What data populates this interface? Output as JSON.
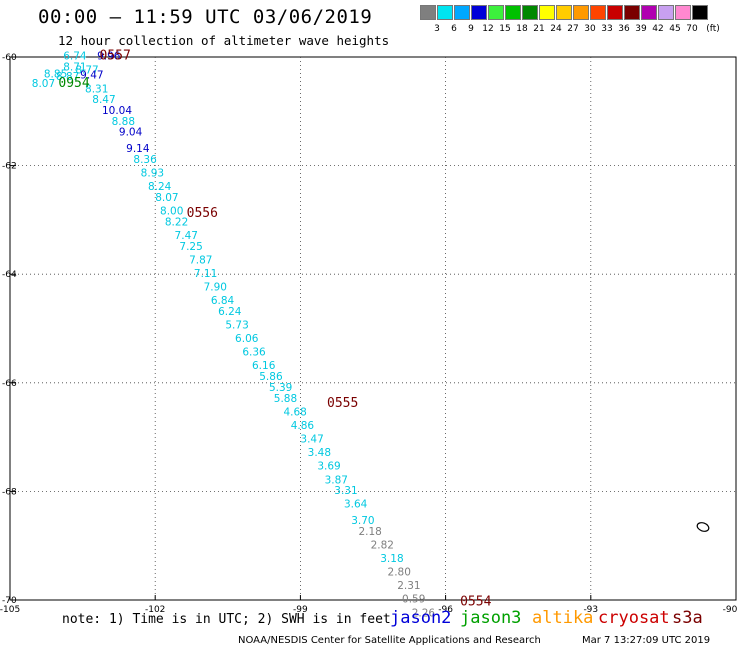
{
  "title": "00:00 – 11:59 UTC 03/06/2019",
  "subtitle": "12 hour collection of altimeter wave heights",
  "legend": {
    "colors": [
      "#7f7f7f",
      "#00e5f0",
      "#00a8ff",
      "#0000d8",
      "#3cf03c",
      "#00c000",
      "#008800",
      "#ffff00",
      "#ffcc00",
      "#ff9900",
      "#ff4400",
      "#c80000",
      "#7a0000",
      "#b000b0",
      "#c8a0f0",
      "#ff88d0",
      "#000000"
    ],
    "labels": [
      "3",
      "6",
      "9",
      "12",
      "15",
      "18",
      "21",
      "24",
      "27",
      "30",
      "33",
      "36",
      "39",
      "42",
      "45",
      "70"
    ],
    "unit": "(ft)"
  },
  "note": "note: 1) Time is in UTC; 2) SWH is in feet",
  "satellites": [
    {
      "name": "jason2",
      "color": "#0000d8"
    },
    {
      "name": "jason3",
      "color": "#00a000"
    },
    {
      "name": "altika",
      "color": "#ff9900"
    },
    {
      "name": "cryosat",
      "color": "#cc0000"
    },
    {
      "name": "s3a",
      "color": "#7a0000"
    }
  ],
  "credit": "NOAA/NESDIS Center for Satellite Applications and Research",
  "credit_time": "Mar  7 13:27:09 UTC 2019",
  "chart_data": {
    "type": "scatter",
    "title": "00:00 – 11:59 UTC 03/06/2019",
    "subtitle": "12 hour collection of altimeter wave heights",
    "xlim": [
      -105,
      -90
    ],
    "ylim": [
      -70,
      -60
    ],
    "x_ticks": [
      -105,
      -102,
      -99,
      -96,
      -93,
      -90
    ],
    "y_ticks": [
      -60,
      -62,
      -64,
      -66,
      -68,
      -70
    ],
    "grid": "dotted",
    "points": [
      {
        "lon": -103.9,
        "lat": -60.05,
        "v": "6.74"
      },
      {
        "lon": -103.2,
        "lat": -60.05,
        "v": "9.96"
      },
      {
        "lon": -103.9,
        "lat": -60.25,
        "v": "8.71"
      },
      {
        "lon": -103.65,
        "lat": -60.3,
        "v": "8.77"
      },
      {
        "lon": -103.55,
        "lat": -60.4,
        "v": "9.47"
      },
      {
        "lon": -104.3,
        "lat": -60.38,
        "v": "8.85"
      },
      {
        "lon": -104.05,
        "lat": -60.42,
        "v": "8.87"
      },
      {
        "lon": -104.55,
        "lat": -60.55,
        "v": "8.07"
      },
      {
        "lon": -103.45,
        "lat": -60.65,
        "v": "8.31"
      },
      {
        "lon": -103.3,
        "lat": -60.85,
        "v": "8.47"
      },
      {
        "lon": -103.1,
        "lat": -61.05,
        "v": "10.04"
      },
      {
        "lon": -102.9,
        "lat": -61.25,
        "v": "8.88"
      },
      {
        "lon": -102.75,
        "lat": -61.45,
        "v": "9.04"
      },
      {
        "lon": -102.6,
        "lat": -61.75,
        "v": "9.14"
      },
      {
        "lon": -102.45,
        "lat": -61.95,
        "v": "8.36"
      },
      {
        "lon": -102.3,
        "lat": -62.2,
        "v": "8.93"
      },
      {
        "lon": -102.15,
        "lat": -62.45,
        "v": "8.24"
      },
      {
        "lon": -102.0,
        "lat": -62.65,
        "v": "8.07"
      },
      {
        "lon": -101.9,
        "lat": -62.9,
        "v": "8.00"
      },
      {
        "lon": -101.8,
        "lat": -63.1,
        "v": "8.22"
      },
      {
        "lon": -101.6,
        "lat": -63.35,
        "v": "7.47"
      },
      {
        "lon": -101.5,
        "lat": -63.55,
        "v": "7.25"
      },
      {
        "lon": -101.3,
        "lat": -63.8,
        "v": "7.87"
      },
      {
        "lon": -101.2,
        "lat": -64.05,
        "v": "7.11"
      },
      {
        "lon": -101.0,
        "lat": -64.3,
        "v": "7.90"
      },
      {
        "lon": -100.85,
        "lat": -64.55,
        "v": "6.84"
      },
      {
        "lon": -100.7,
        "lat": -64.75,
        "v": "6.24"
      },
      {
        "lon": -100.55,
        "lat": -65.0,
        "v": "5.73"
      },
      {
        "lon": -100.35,
        "lat": -65.25,
        "v": "6.06"
      },
      {
        "lon": -100.2,
        "lat": -65.5,
        "v": "6.36"
      },
      {
        "lon": -100.0,
        "lat": -65.75,
        "v": "6.16"
      },
      {
        "lon": -99.85,
        "lat": -65.95,
        "v": "5.86"
      },
      {
        "lon": -99.65,
        "lat": -66.15,
        "v": "5.39"
      },
      {
        "lon": -99.55,
        "lat": -66.35,
        "v": "5.88"
      },
      {
        "lon": -99.35,
        "lat": -66.6,
        "v": "4.68"
      },
      {
        "lon": -99.2,
        "lat": -66.85,
        "v": "4.86"
      },
      {
        "lon": -99.0,
        "lat": -67.1,
        "v": "3.47"
      },
      {
        "lon": -98.85,
        "lat": -67.35,
        "v": "3.48"
      },
      {
        "lon": -98.65,
        "lat": -67.6,
        "v": "3.69"
      },
      {
        "lon": -98.5,
        "lat": -67.85,
        "v": "3.87"
      },
      {
        "lon": -98.3,
        "lat": -68.05,
        "v": "3.31"
      },
      {
        "lon": -98.1,
        "lat": -68.3,
        "v": "3.64"
      },
      {
        "lon": -97.95,
        "lat": -68.6,
        "v": "3.70"
      },
      {
        "lon": -97.8,
        "lat": -68.8,
        "v": "2.18"
      },
      {
        "lon": -97.55,
        "lat": -69.05,
        "v": "2.82"
      },
      {
        "lon": -97.35,
        "lat": -69.3,
        "v": "3.18"
      },
      {
        "lon": -97.2,
        "lat": -69.55,
        "v": "2.80"
      },
      {
        "lon": -97.0,
        "lat": -69.8,
        "v": "2.31"
      },
      {
        "lon": -96.9,
        "lat": -70.05,
        "v": "0.59"
      },
      {
        "lon": -96.7,
        "lat": -70.3,
        "v": "2.26"
      }
    ],
    "time_labels": [
      {
        "lon": -103.15,
        "lat": -60.05,
        "text": "0557",
        "color": "#7a0000"
      },
      {
        "lon": -104.0,
        "lat": -60.55,
        "text": "0954",
        "color": "#008800"
      },
      {
        "lon": -101.35,
        "lat": -62.95,
        "text": "0556",
        "color": "#7a0000"
      },
      {
        "lon": -98.45,
        "lat": -66.45,
        "text": "0555",
        "color": "#7a0000"
      },
      {
        "lon": -95.7,
        "lat": -70.1,
        "text": "0554",
        "color": "#7a0000"
      }
    ]
  }
}
